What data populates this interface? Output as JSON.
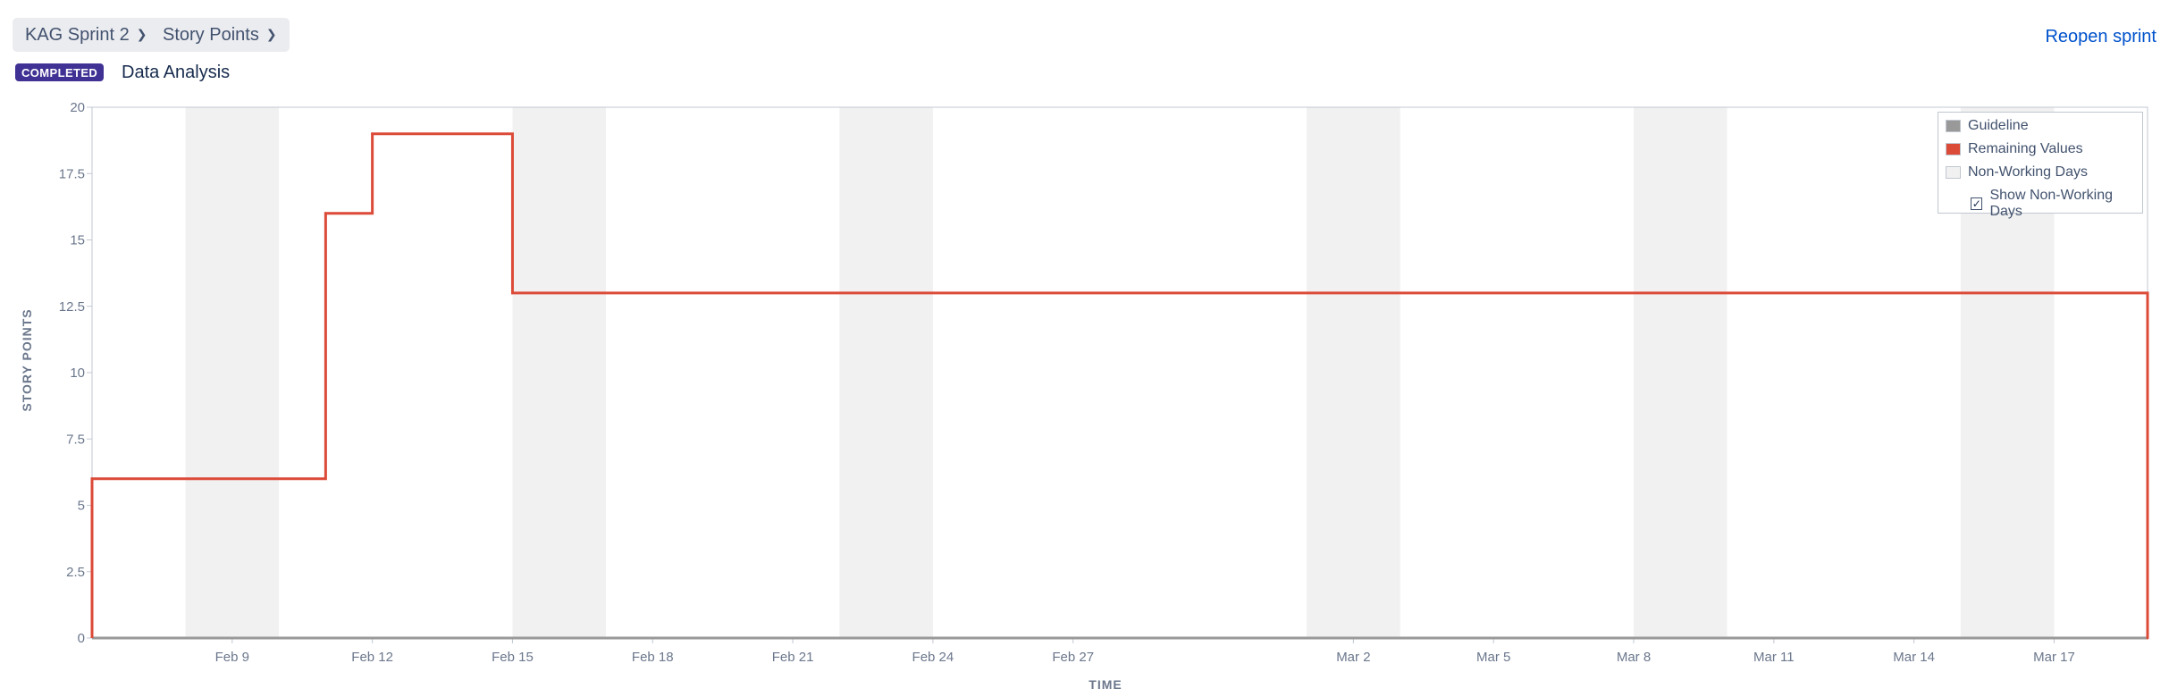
{
  "header": {
    "sprint_select": "KAG Sprint 2",
    "metric_select": "Story Points",
    "reopen_label": "Reopen sprint",
    "status_badge": "COMPLETED",
    "sprint_goal": "Data Analysis"
  },
  "legend": {
    "guideline": "Guideline",
    "remaining": "Remaining Values",
    "non_working": "Non-Working Days",
    "show_non_working": "Show Non-Working Days",
    "show_non_working_checked": true
  },
  "colors": {
    "remaining": "#dc4a38",
    "guideline": "#999999",
    "non_working": "#f1f1f1",
    "badge": "#403294",
    "link": "#0052cc"
  },
  "chart_data": {
    "type": "line",
    "step": true,
    "title": "",
    "xlabel": "TIME",
    "ylabel": "STORY POINTS",
    "ylim": [
      0,
      20
    ],
    "y_ticks": [
      "0",
      "2.5",
      "5",
      "7.5",
      "10",
      "12.5",
      "15",
      "17.5",
      "20"
    ],
    "x_start": "Feb 6",
    "x_end": "Mar 19",
    "x_ticks": [
      "Feb 9",
      "Feb 12",
      "Feb 15",
      "Feb 18",
      "Feb 21",
      "Feb 24",
      "Feb 27",
      "Mar 2",
      "Mar 5",
      "Mar 8",
      "Mar 11",
      "Mar 14",
      "Mar 17"
    ],
    "non_working_days": [
      [
        "Feb 8",
        "Feb 10"
      ],
      [
        "Feb 15",
        "Feb 17"
      ],
      [
        "Feb 22",
        "Feb 24"
      ],
      [
        "Mar 1",
        "Mar 3"
      ],
      [
        "Mar 8",
        "Mar 10"
      ],
      [
        "Mar 15",
        "Mar 17"
      ]
    ],
    "series": [
      {
        "name": "Remaining Values",
        "points": [
          {
            "x": "Feb 6",
            "y": 6
          },
          {
            "x": "Feb 11",
            "y": 16
          },
          {
            "x": "Feb 12",
            "y": 19
          },
          {
            "x": "Feb 15",
            "y": 13
          },
          {
            "x": "Mar 19",
            "y": 0
          }
        ]
      },
      {
        "name": "Guideline",
        "points": [
          {
            "x": "Feb 6",
            "y": 0
          },
          {
            "x": "Mar 19",
            "y": 0
          }
        ]
      }
    ]
  }
}
